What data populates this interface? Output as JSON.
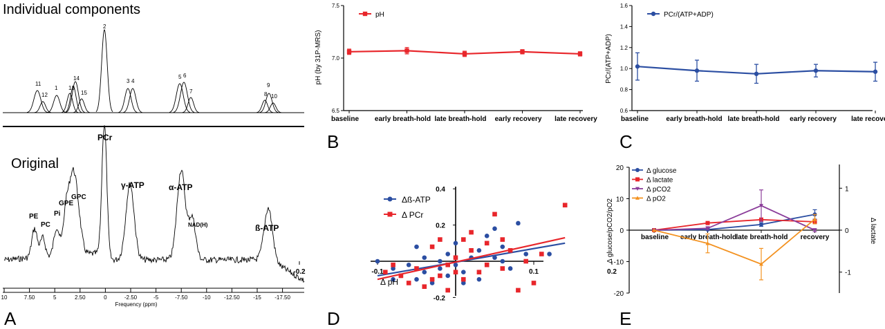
{
  "panel_labels": {
    "a": "A",
    "b": "B",
    "c": "C",
    "d": "D",
    "e": "E"
  },
  "panel_a": {
    "title_top": "Individual components",
    "title_bottom": "Original",
    "component_numbers": [
      "11",
      "12",
      "1",
      "13",
      "14",
      "15",
      "2",
      "3",
      "4",
      "5",
      "6",
      "7",
      "8",
      "9",
      "10"
    ],
    "peak_labels": [
      "PE",
      "PC",
      "Pi",
      "GPE",
      "GPC",
      "PCr",
      "γ-ATP",
      "α-ATP",
      "NAD(H)",
      "ß-ATP"
    ],
    "x_ticks": [
      "10",
      "7.50",
      "5",
      "2.50",
      "0",
      "-2.50",
      "-5",
      "-7.50",
      "-10",
      "-12.50",
      "-15",
      "-17.50"
    ],
    "xlabel": "Frequency (ppm)"
  },
  "chart_data": [
    {
      "panel": "B",
      "type": "line",
      "categories": [
        "baseline",
        "early breath-hold",
        "late breath-hold",
        "early recovery",
        "late recovery"
      ],
      "series": [
        {
          "name": "pH",
          "values": [
            7.06,
            7.07,
            7.04,
            7.06,
            7.04
          ],
          "errors": [
            0.025,
            0.03,
            0.025,
            0.02,
            0.02
          ],
          "color": "#e8262b"
        }
      ],
      "ylabel": "pH (by 31P-MRS)",
      "ylim": [
        6.5,
        7.5
      ],
      "yticks": [
        "6.5",
        "7.0",
        "7.5"
      ],
      "legend": "top-left"
    },
    {
      "panel": "C",
      "type": "line",
      "categories": [
        "baseline",
        "early breath-hold",
        "late breath-hold",
        "early recovery",
        "late recovery"
      ],
      "series": [
        {
          "name": "PCr/(ATP+ADP)",
          "values": [
            1.02,
            0.98,
            0.95,
            0.98,
            0.97
          ],
          "errors": [
            0.13,
            0.1,
            0.09,
            0.06,
            0.09
          ],
          "color": "#2b4ea2"
        }
      ],
      "ylabel": "PCr/(ATP+ADP)",
      "ylim": [
        0.6,
        1.6
      ],
      "yticks": [
        "0.6",
        "0.8",
        "1.0",
        "1.2",
        "1.4",
        "1.6"
      ],
      "legend": "top-left"
    },
    {
      "panel": "D",
      "type": "scatter",
      "xlabel": "Δ pH",
      "xlim": [
        -0.2,
        0.2
      ],
      "ylim": [
        -0.2,
        0.4
      ],
      "xticks": [
        "-0.2",
        "-0.1",
        "0.1",
        "0.2"
      ],
      "yticks": [
        "-0.2",
        "0.2",
        "0.4"
      ],
      "legend": "top-left",
      "series": [
        {
          "name": "Δß-ATP",
          "color": "#2b4ea2",
          "points": [
            [
              -0.1,
              0.0
            ],
            [
              -0.08,
              -0.04
            ],
            [
              -0.07,
              -0.08
            ],
            [
              -0.06,
              -0.02
            ],
            [
              -0.05,
              -0.1
            ],
            [
              -0.04,
              -0.06
            ],
            [
              -0.04,
              0.02
            ],
            [
              -0.03,
              -0.12
            ],
            [
              -0.02,
              -0.04
            ],
            [
              -0.01,
              -0.08
            ],
            [
              -0.01,
              0.04
            ],
            [
              0.0,
              -0.02
            ],
            [
              0.0,
              0.1
            ],
            [
              0.01,
              -0.06
            ],
            [
              0.02,
              0.02
            ],
            [
              0.03,
              -0.1
            ],
            [
              0.03,
              0.06
            ],
            [
              0.04,
              0.14
            ],
            [
              0.05,
              0.02
            ],
            [
              0.05,
              0.18
            ],
            [
              0.06,
              0.0
            ],
            [
              0.07,
              -0.04
            ],
            [
              0.08,
              0.21
            ],
            [
              0.09,
              0.04
            ],
            [
              -0.05,
              0.08
            ],
            [
              -0.02,
              0.0
            ],
            [
              0.01,
              -0.12
            ],
            [
              0.04,
              -0.02
            ],
            [
              -0.08,
              -0.1
            ],
            [
              0.06,
              0.08
            ],
            [
              0.12,
              0.04
            ]
          ],
          "fit": [
            [
              -0.1,
              -0.08
            ],
            [
              0.14,
              0.1
            ]
          ]
        },
        {
          "name": "Δ PCr",
          "color": "#e8262b",
          "points": [
            [
              -0.09,
              -0.06
            ],
            [
              -0.08,
              -0.02
            ],
            [
              -0.06,
              -0.12
            ],
            [
              -0.05,
              -0.04
            ],
            [
              -0.04,
              -0.14
            ],
            [
              -0.03,
              0.08
            ],
            [
              -0.02,
              -0.08
            ],
            [
              -0.02,
              0.12
            ],
            [
              -0.01,
              -0.02
            ],
            [
              -0.01,
              -0.16
            ],
            [
              0.0,
              0.02
            ],
            [
              0.01,
              -0.1
            ],
            [
              0.02,
              0.06
            ],
            [
              0.02,
              0.16
            ],
            [
              0.03,
              -0.06
            ],
            [
              0.04,
              0.1
            ],
            [
              0.04,
              -0.02
            ],
            [
              0.05,
              0.26
            ],
            [
              0.06,
              0.12
            ],
            [
              0.07,
              0.06
            ],
            [
              0.08,
              -0.16
            ],
            [
              0.09,
              0.0
            ],
            [
              0.1,
              -0.12
            ],
            [
              0.11,
              0.04
            ],
            [
              0.14,
              0.31
            ],
            [
              -0.07,
              -0.08
            ],
            [
              0.0,
              -0.06
            ],
            [
              -0.03,
              -0.1
            ],
            [
              0.01,
              0.12
            ],
            [
              0.06,
              -0.04
            ]
          ],
          "fit": [
            [
              -0.1,
              -0.1
            ],
            [
              0.14,
              0.13
            ]
          ]
        }
      ]
    },
    {
      "panel": "E",
      "type": "line",
      "categories": [
        "baseline",
        "early breath-hold",
        "late breath-hold",
        "recovery"
      ],
      "ylabel_left": "Δ glucose/pCO2/pO2",
      "ylabel_right": "Δ lactate",
      "ylim_left": [
        -20,
        20
      ],
      "ylim_right": [
        -1.5,
        1.5
      ],
      "yticks_left": [
        "-20",
        "-10",
        "0",
        "10",
        "20"
      ],
      "yticks_right": [
        "-1",
        "0",
        "1"
      ],
      "legend": "top-left",
      "series": [
        {
          "name": "Δ glucose",
          "axis": "left",
          "color": "#2b4ea2",
          "values": [
            0,
            0.2,
            1.8,
            5.0
          ],
          "errors": [
            0,
            0.3,
            0.6,
            1.5
          ]
        },
        {
          "name": "Δ lactate",
          "axis": "right",
          "color": "#e8262b",
          "values": [
            0,
            0.17,
            0.25,
            0.2
          ],
          "errors": [
            0,
            0.02,
            0.04,
            0.05
          ]
        },
        {
          "name": "Δ pCO2",
          "axis": "left",
          "color": "#8b3d9a",
          "values": [
            0,
            0.6,
            7.8,
            0
          ],
          "errors": [
            0,
            0.5,
            5.0,
            0.5
          ]
        },
        {
          "name": "Δ pO2",
          "axis": "left",
          "color": "#f39221",
          "values": [
            0,
            -4.2,
            -10.8,
            3.5
          ],
          "errors": [
            0,
            3.0,
            5.0,
            1.5
          ]
        }
      ]
    }
  ]
}
